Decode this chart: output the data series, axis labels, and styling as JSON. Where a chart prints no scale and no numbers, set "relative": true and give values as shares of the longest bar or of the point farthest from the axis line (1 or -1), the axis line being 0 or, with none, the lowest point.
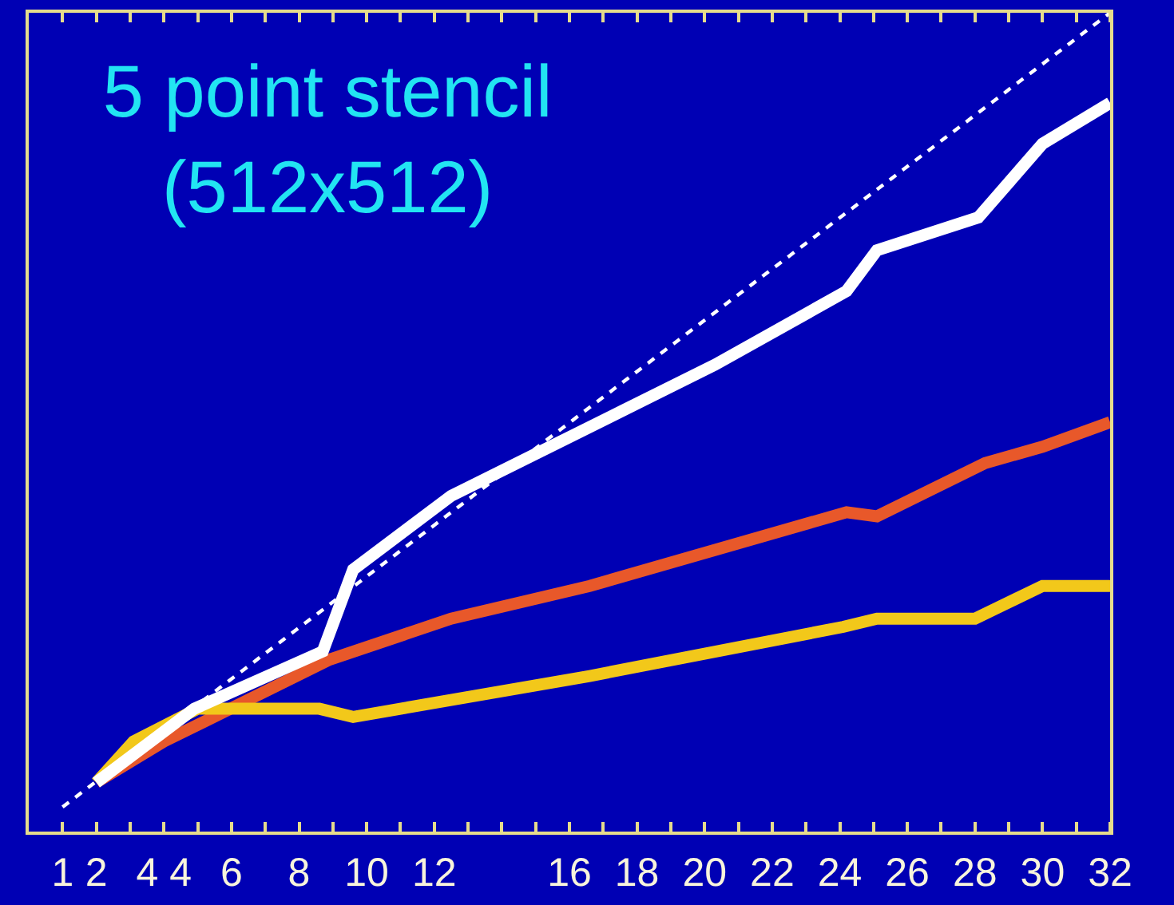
{
  "chart_data": {
    "type": "line",
    "title": "5 point stencil\n(512x512)",
    "relative": true,
    "marker": "none",
    "xlim": [
      0,
      32
    ],
    "xticks": [
      1,
      2,
      {
        "value": 3,
        "label": null
      },
      {
        "value": 4,
        "label": "4 4"
      },
      {
        "value": 5,
        "label": null
      },
      6,
      {
        "value": 7,
        "label": null
      },
      8,
      {
        "value": 9,
        "label": null
      },
      10,
      {
        "value": 11,
        "label": null
      },
      12,
      {
        "value": 13,
        "label": null
      },
      {
        "value": 14,
        "label": null
      },
      {
        "value": 15,
        "label": null
      },
      16,
      {
        "value": 17,
        "label": null
      },
      18,
      {
        "value": 19,
        "label": null
      },
      20,
      {
        "value": 21,
        "label": null
      },
      22,
      {
        "value": 23,
        "label": null
      },
      24,
      {
        "value": 25,
        "label": null
      },
      26,
      {
        "value": 27,
        "label": null
      },
      28,
      {
        "value": 29,
        "label": null
      },
      30,
      {
        "value": 31,
        "label": null
      },
      32
    ],
    "series": [
      {
        "color": "#e8582a",
        "x": [
          2,
          4,
          8.9,
          12.5,
          16.6,
          24.2,
          25.1,
          28.3,
          30,
          32
        ],
        "values": [
          0.06,
          0.11,
          0.21,
          0.26,
          0.3,
          0.39,
          0.385,
          0.45,
          0.47,
          0.5
        ]
      },
      {
        "color": "#f2c81a",
        "x": [
          2,
          3.1,
          5,
          8.6,
          9.6,
          16.6,
          24.1,
          25.1,
          28,
          30,
          32
        ],
        "values": [
          0.06,
          0.11,
          0.15,
          0.15,
          0.14,
          0.19,
          0.25,
          0.26,
          0.26,
          0.3,
          0.3
        ]
      },
      {
        "color": "#ffffff",
        "x": [
          2,
          4.9,
          8.7,
          9.6,
          12.5,
          20.3,
          24.2,
          25.1,
          28.1,
          30,
          32
        ],
        "values": [
          0.06,
          0.15,
          0.22,
          0.32,
          0.41,
          0.57,
          0.66,
          0.71,
          0.75,
          0.84,
          0.89
        ]
      },
      {
        "color": "#ffffff",
        "line_style": "dashed",
        "x": [
          1,
          32
        ],
        "values": [
          0.03,
          1
        ]
      }
    ]
  }
}
